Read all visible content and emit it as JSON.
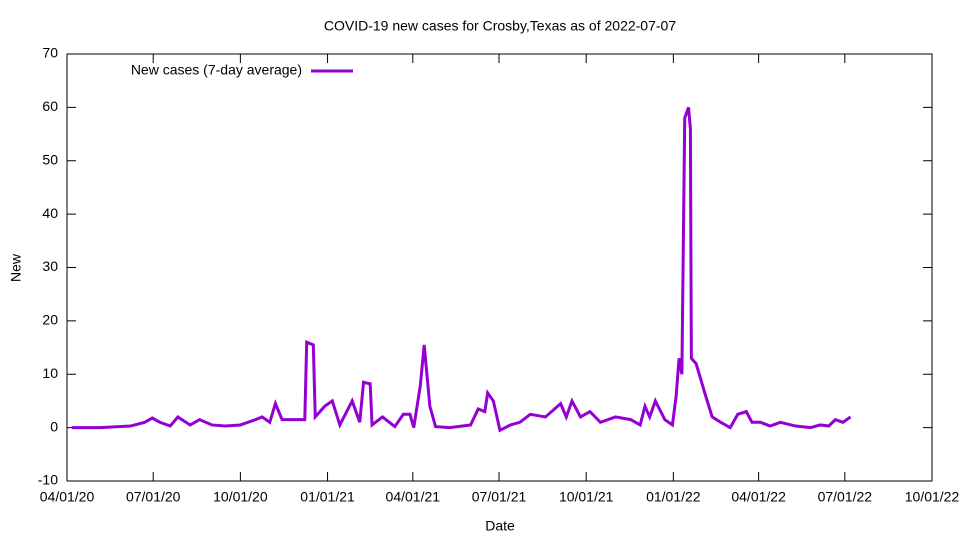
{
  "chart_data": {
    "type": "line",
    "title": "COVID-19 new cases for Crosby,Texas as of 2022-07-07",
    "x_label": "Date",
    "y_label": "New",
    "x": [
      "2020-04-06",
      "2020-05-06",
      "2020-06-07",
      "2020-06-22",
      "2020-06-30",
      "2020-07-08",
      "2020-07-19",
      "2020-07-27",
      "2020-08-09",
      "2020-08-19",
      "2020-09-01",
      "2020-09-15",
      "2020-10-01",
      "2020-10-17",
      "2020-10-24",
      "2020-11-01",
      "2020-11-07",
      "2020-11-14",
      "2020-11-28",
      "2020-12-08",
      "2020-12-10",
      "2020-12-17",
      "2020-12-19",
      "2020-12-29",
      "2021-01-06",
      "2021-01-14",
      "2021-01-27",
      "2021-02-04",
      "2021-02-08",
      "2021-02-15",
      "2021-02-17",
      "2021-02-28",
      "2021-03-13",
      "2021-03-22",
      "2021-03-29",
      "2021-04-02",
      "2021-04-09",
      "2021-04-13",
      "2021-04-19",
      "2021-04-25",
      "2021-05-10",
      "2021-06-01",
      "2021-06-09",
      "2021-06-16",
      "2021-06-19",
      "2021-06-25",
      "2021-07-02",
      "2021-07-13",
      "2021-07-23",
      "2021-08-03",
      "2021-08-19",
      "2021-09-04",
      "2021-09-10",
      "2021-09-16",
      "2021-09-25",
      "2021-10-05",
      "2021-10-16",
      "2021-11-01",
      "2021-11-17",
      "2021-11-27",
      "2021-12-02",
      "2021-12-07",
      "2021-12-13",
      "2021-12-23",
      "2021-12-31",
      "2022-01-04",
      "2022-01-07",
      "2022-01-10",
      "2022-01-13",
      "2022-01-17",
      "2022-01-19",
      "2022-01-20",
      "2022-01-25",
      "2022-02-04",
      "2022-02-11",
      "2022-02-20",
      "2022-03-02",
      "2022-03-10",
      "2022-03-19",
      "2022-03-25",
      "2022-04-03",
      "2022-04-13",
      "2022-04-24",
      "2022-05-10",
      "2022-05-26",
      "2022-06-05",
      "2022-06-14",
      "2022-06-21",
      "2022-06-29",
      "2022-07-07"
    ],
    "series": [
      {
        "name": "New cases (7-day average)",
        "color": "#9400d3",
        "values": [
          0,
          0,
          0.3,
          1,
          1.8,
          1,
          0.3,
          2,
          0.5,
          1.5,
          0.5,
          0.3,
          0.5,
          1.5,
          2,
          1,
          4.5,
          1.5,
          1.5,
          1.5,
          16,
          15.5,
          2,
          4,
          5,
          0.5,
          5,
          1,
          8.5,
          8.2,
          0.5,
          2,
          0.2,
          2.5,
          2.5,
          0,
          8,
          15.5,
          4,
          0.2,
          0,
          0.5,
          3.5,
          3,
          6.5,
          5,
          -0.5,
          0.5,
          1,
          2.5,
          2,
          4.5,
          2,
          5,
          2,
          3,
          1,
          2,
          1.5,
          0.5,
          4,
          2,
          5,
          1.5,
          0.5,
          6,
          13,
          10,
          58,
          60,
          56,
          13,
          12,
          6,
          2,
          1,
          0,
          2.5,
          3,
          1,
          1,
          0.3,
          1,
          0.3,
          0,
          0.5,
          0.3,
          1.5,
          1,
          2
        ]
      }
    ],
    "xlim": [
      "2020-04-01",
      "2022-10-01"
    ],
    "xticks": [
      {
        "value": "2020-04-01",
        "label": "04/01/20"
      },
      {
        "value": "2020-07-01",
        "label": "07/01/20"
      },
      {
        "value": "2020-10-01",
        "label": "10/01/20"
      },
      {
        "value": "2021-01-01",
        "label": "01/01/21"
      },
      {
        "value": "2021-04-01",
        "label": "04/01/21"
      },
      {
        "value": "2021-07-01",
        "label": "07/01/21"
      },
      {
        "value": "2021-10-01",
        "label": "10/01/21"
      },
      {
        "value": "2022-01-01",
        "label": "01/01/22"
      },
      {
        "value": "2022-04-01",
        "label": "04/01/22"
      },
      {
        "value": "2022-07-01",
        "label": "07/01/22"
      },
      {
        "value": "2022-10-01",
        "label": "10/01/22"
      }
    ],
    "ylim": [
      -10,
      70
    ],
    "yticks": [
      -10,
      0,
      10,
      20,
      30,
      40,
      50,
      60,
      70
    ],
    "legend": "top-left"
  }
}
